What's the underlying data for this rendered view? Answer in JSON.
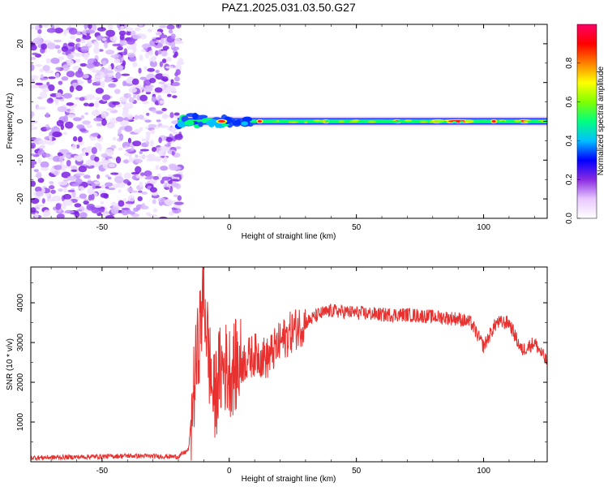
{
  "figure": {
    "title": "PAZ1.2025.031.03.50.G27"
  },
  "chart_data": [
    {
      "type": "heatmap",
      "xlabel": "Height of straight line (km)",
      "ylabel": "Frequency (Hz)",
      "xlim": [
        -78,
        125
      ],
      "ylim": [
        -25,
        25
      ],
      "xticks": [
        -50,
        0,
        50,
        100
      ],
      "yticks": [
        -20,
        -10,
        0,
        10,
        20
      ],
      "colorbar": {
        "label": "Normalized spectral amplitude",
        "range": [
          0,
          1
        ],
        "ticks": [
          0.0,
          0.2,
          0.4,
          0.6,
          0.8
        ],
        "tick_labels": [
          "0.0",
          "0.2",
          "0.4",
          "0.6",
          "0.8"
        ],
        "colormap": [
          "#ffffff",
          "#e8c8ff",
          "#8a2be2",
          "#0000ff",
          "#00bfff",
          "#00ff80",
          "#80ff00",
          "#ffff00",
          "#ff8000",
          "#ff0000",
          "#ff0066"
        ]
      },
      "noise_region_x": [
        -78,
        -19
      ],
      "signal_frequency_hz": 0,
      "strong_band_x": [
        80,
        115
      ],
      "grid": false
    },
    {
      "type": "line",
      "xlabel": "Height of straight line (km)",
      "ylabel": "SNR (10 * v/v)",
      "xlim": [
        -78,
        125
      ],
      "ylim": [
        0,
        4900
      ],
      "xticks": [
        -50,
        0,
        50,
        100
      ],
      "yticks": [
        1000,
        2000,
        3000,
        4000
      ],
      "color": "#e8302e",
      "grid": false,
      "series": [
        {
          "x": [
            -78,
            -60,
            -40,
            -20,
            -16,
            -14,
            -12,
            -10,
            -8,
            -6,
            -4,
            -2,
            0,
            5,
            10,
            15,
            20,
            25,
            30,
            35,
            40,
            50,
            60,
            70,
            80,
            90,
            95,
            100,
            105,
            110,
            115,
            120,
            125
          ],
          "values": [
            100,
            120,
            150,
            130,
            300,
            1800,
            3000,
            4300,
            2600,
            1500,
            2200,
            2400,
            2300,
            2500,
            2700,
            2600,
            3000,
            3300,
            3500,
            3700,
            3800,
            3750,
            3700,
            3700,
            3650,
            3600,
            3500,
            2900,
            3500,
            3500,
            2800,
            3000,
            2500
          ]
        }
      ]
    }
  ]
}
